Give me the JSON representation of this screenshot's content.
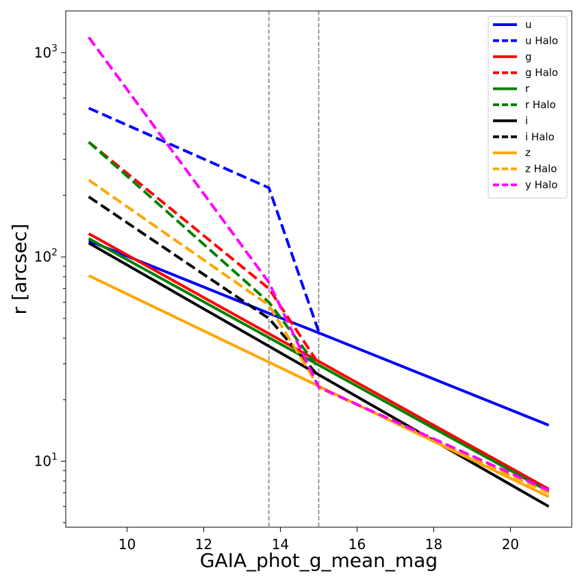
{
  "chart_data": {
    "type": "line",
    "title": "",
    "xlabel": "GAIA_phot_g_mean_mag",
    "ylabel": "r [arcsec]",
    "xlim": [
      8.4,
      21.6
    ],
    "ylim": [
      4.75,
      1600
    ],
    "yscale": "log",
    "x_ticks": [
      10,
      12,
      14,
      16,
      18,
      20
    ],
    "x_tick_labels": [
      "10",
      "12",
      "14",
      "16",
      "18",
      "20"
    ],
    "y_major_ticks": [
      {
        "value": 10,
        "base": "10",
        "exp": "1"
      },
      {
        "value": 100,
        "base": "10",
        "exp": "2"
      },
      {
        "value": 1000,
        "base": "10",
        "exp": "3"
      }
    ],
    "vlines": [
      13.7,
      15.0
    ],
    "vline_color": "#808080",
    "legend_position": "top-right",
    "series": [
      {
        "name": "u",
        "color": "#0000ff",
        "dashed": false,
        "x": [
          9,
          13.7,
          15,
          21
        ],
        "values": [
          120,
          53,
          42.5,
          15
        ]
      },
      {
        "name": "u Halo",
        "color": "#0000ff",
        "dashed": true,
        "x": [
          9,
          13.7,
          15
        ],
        "values": [
          535,
          218,
          43
        ]
      },
      {
        "name": "g",
        "color": "#ff0000",
        "dashed": false,
        "x": [
          9,
          21
        ],
        "values": [
          130,
          7.3
        ]
      },
      {
        "name": "g Halo",
        "color": "#ff0000",
        "dashed": true,
        "x": [
          9,
          13.7,
          15
        ],
        "values": [
          365,
          70,
          30
        ]
      },
      {
        "name": "r",
        "color": "#008000",
        "dashed": false,
        "x": [
          9,
          21
        ],
        "values": [
          123,
          7.1
        ]
      },
      {
        "name": "r Halo",
        "color": "#008000",
        "dashed": true,
        "x": [
          9,
          13.7,
          15
        ],
        "values": [
          365,
          60,
          28.5
        ]
      },
      {
        "name": "i",
        "color": "#000000",
        "dashed": false,
        "x": [
          9,
          21
        ],
        "values": [
          117,
          6
        ]
      },
      {
        "name": "i Halo",
        "color": "#000000",
        "dashed": true,
        "x": [
          9,
          13.7,
          15
        ],
        "values": [
          197,
          50,
          26
        ]
      },
      {
        "name": "z",
        "color": "#ffa500",
        "dashed": false,
        "x": [
          9,
          21
        ],
        "values": [
          81,
          6.7
        ]
      },
      {
        "name": "z Halo",
        "color": "#ffa500",
        "dashed": true,
        "x": [
          9,
          13.7,
          15,
          21
        ],
        "values": [
          238,
          58,
          23,
          7
        ]
      },
      {
        "name": "y Halo",
        "color": "#ff00ff",
        "dashed": true,
        "x": [
          9,
          13.7,
          15,
          21
        ],
        "values": [
          1190,
          75,
          23,
          7.2
        ]
      }
    ]
  }
}
